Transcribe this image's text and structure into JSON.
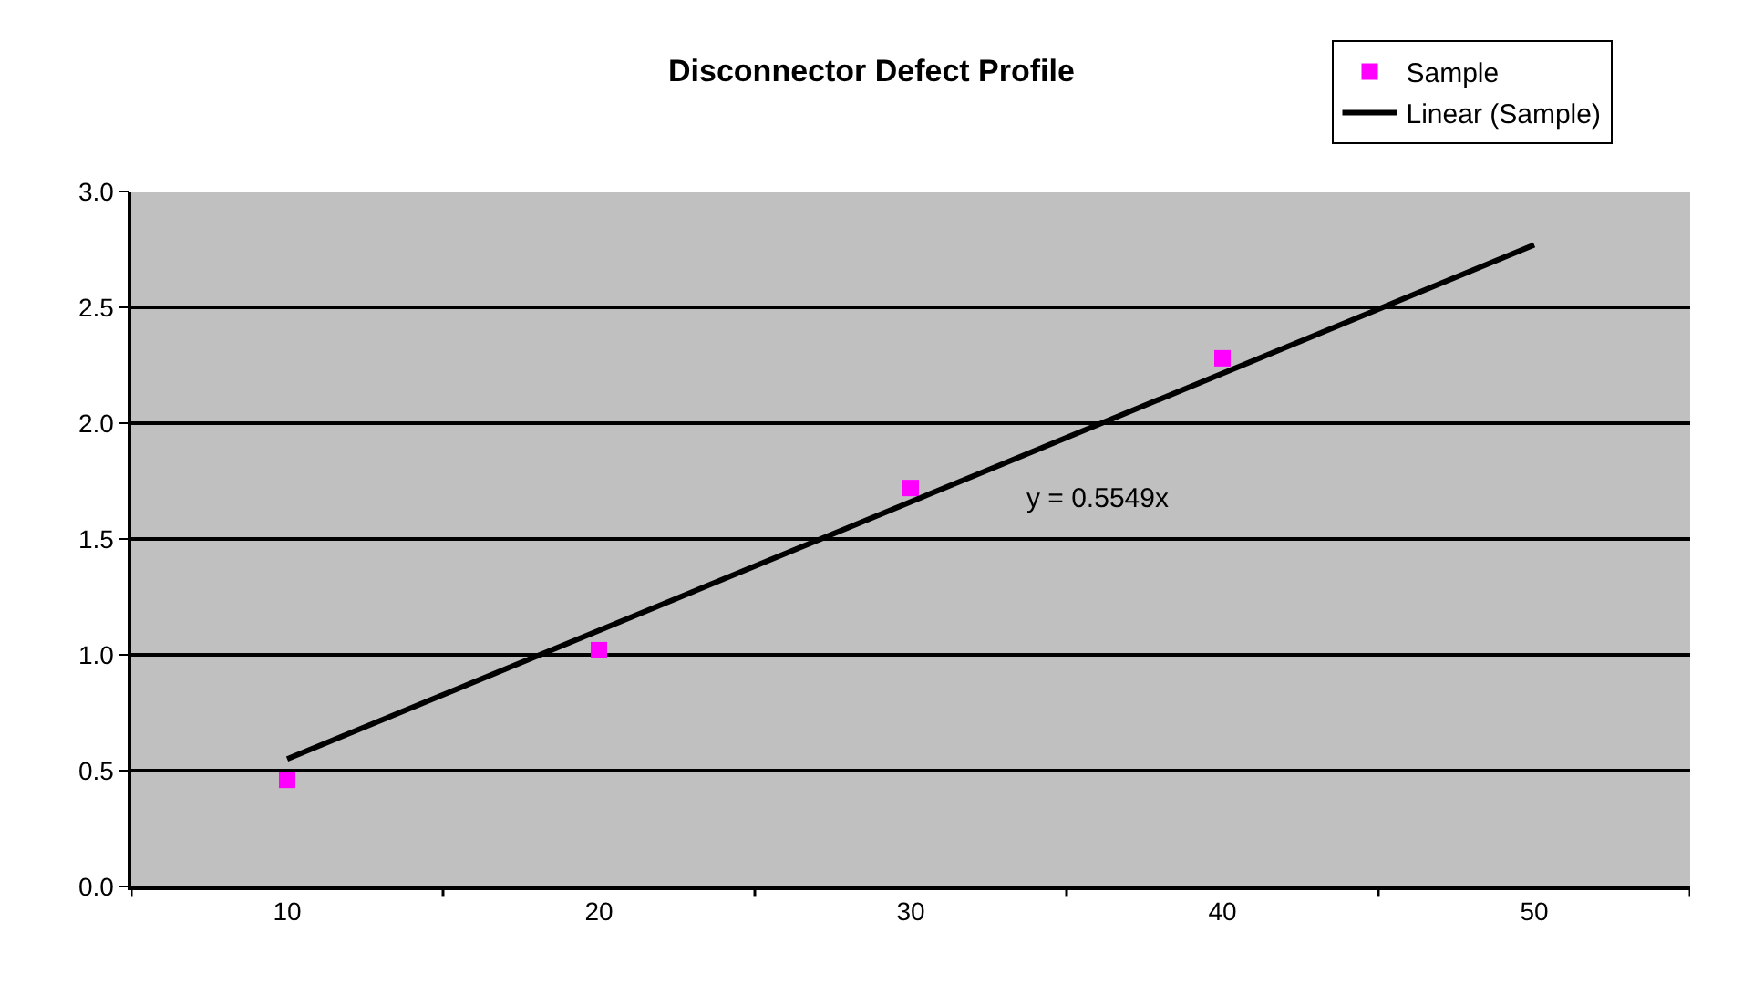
{
  "chart_data": {
    "type": "scatter",
    "title": "Disconnector Defect Profile",
    "categories": [
      "10",
      "20",
      "30",
      "40",
      "50"
    ],
    "series": [
      {
        "name": "Sample",
        "marker": "square",
        "color": "#ff00ff",
        "values": [
          0.46,
          1.02,
          1.72,
          2.28,
          null
        ]
      },
      {
        "name": "Linear (Sample)",
        "type": "line",
        "marker": "none",
        "color": "#000000",
        "values": [
          0.55,
          null,
          null,
          null,
          2.77
        ]
      }
    ],
    "ylim": [
      0,
      3
    ],
    "yticks": [
      {
        "value": 0,
        "label": "0.0"
      },
      {
        "value": 0.5,
        "label": "0.5"
      },
      {
        "value": 1,
        "label": "1.0"
      },
      {
        "value": 1.5,
        "label": "1.5"
      },
      {
        "value": 2,
        "label": "2.0"
      },
      {
        "value": 2.5,
        "label": "2.5"
      },
      {
        "value": 3,
        "label": "3.0"
      }
    ],
    "grid": "y",
    "legend": "top right",
    "annotations": [
      "y = 0.5549x"
    ]
  }
}
